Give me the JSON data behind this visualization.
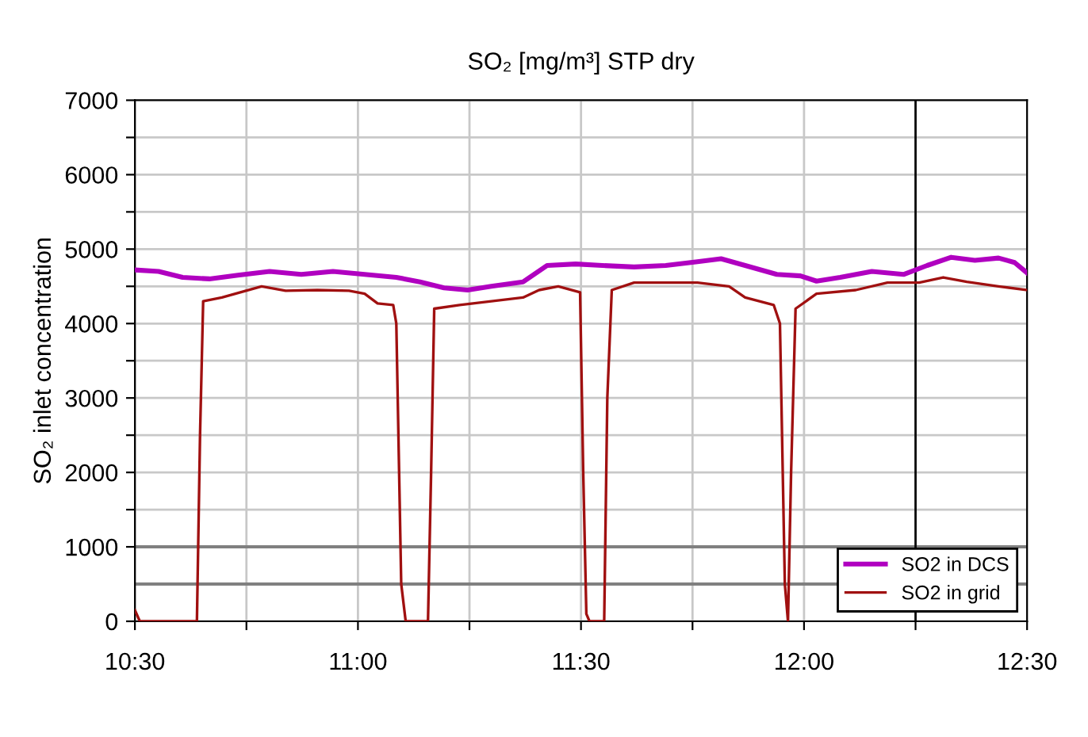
{
  "chart_data": {
    "type": "line",
    "title": "SO₂ [mg/m³] STP dry",
    "ylabel": "SO₂ inlet concentration",
    "xlim": [
      10.5,
      12.5
    ],
    "xticks": [
      {
        "value": 10.5,
        "label": "10:30"
      },
      {
        "value": 10.75,
        "label": null
      },
      {
        "value": 11,
        "label": "11:00"
      },
      {
        "value": 11.25,
        "label": null
      },
      {
        "value": 11.5,
        "label": "11:30"
      },
      {
        "value": 11.75,
        "label": null
      },
      {
        "value": 12,
        "label": "12:00"
      },
      {
        "value": 12.25,
        "label": null
      },
      {
        "value": 12.5,
        "label": "12:30"
      }
    ],
    "ylim": [
      0,
      7000
    ],
    "yticks": [
      0,
      1000,
      {
        "value": 1500,
        "label": null
      },
      2000,
      {
        "value": 2500,
        "label": null
      },
      3000,
      {
        "value": 3500,
        "label": null
      },
      4000,
      {
        "value": 4500,
        "label": null
      },
      5000,
      {
        "value": 5500,
        "label": null
      },
      6000,
      {
        "value": 6500,
        "label": null
      },
      7000
    ],
    "grid": true,
    "legend": "bottom right",
    "marker": "none",
    "line_style": "solid",
    "ref_lines": [
      {
        "axis": "y",
        "value": 500,
        "color": "#808080"
      },
      {
        "axis": "y",
        "value": 1000,
        "color": "#808080"
      },
      {
        "axis": "x",
        "value": 12.25,
        "color": "#000000"
      }
    ],
    "series": [
      {
        "name": "SO2 in DCS",
        "color": "#b000c0",
        "x": [
          10.5,
          10.553,
          10.607,
          10.667,
          10.731,
          10.802,
          10.873,
          10.944,
          11.015,
          11.086,
          11.139,
          11.193,
          11.246,
          11.299,
          11.37,
          11.424,
          11.488,
          11.548,
          11.619,
          11.69,
          11.761,
          11.814,
          11.868,
          11.939,
          11.992,
          12.028,
          12.081,
          12.152,
          12.223,
          12.276,
          12.33,
          12.383,
          12.436,
          12.472,
          12.5
        ],
        "values": [
          4720,
          4700,
          4620,
          4600,
          4650,
          4700,
          4660,
          4700,
          4660,
          4620,
          4560,
          4480,
          4450,
          4500,
          4560,
          4780,
          4800,
          4780,
          4760,
          4780,
          4830,
          4870,
          4780,
          4660,
          4640,
          4570,
          4620,
          4700,
          4660,
          4780,
          4890,
          4850,
          4880,
          4820,
          4680
        ]
      },
      {
        "name": "SO2 in grid",
        "color": "#a01010",
        "x": [
          10.5,
          10.511,
          10.639,
          10.646,
          10.653,
          10.695,
          10.784,
          10.838,
          10.909,
          10.98,
          11.015,
          11.044,
          11.079,
          11.086,
          11.097,
          11.107,
          11.157,
          11.164,
          11.171,
          11.228,
          11.299,
          11.37,
          11.406,
          11.449,
          11.498,
          11.505,
          11.512,
          11.519,
          11.552,
          11.559,
          11.569,
          11.619,
          11.69,
          11.761,
          11.832,
          11.868,
          11.932,
          11.946,
          11.957,
          11.964,
          11.971,
          11.981,
          12.028,
          12.116,
          12.187,
          12.258,
          12.312,
          12.365,
          12.436,
          12.5
        ],
        "values": [
          150,
          0,
          0,
          2500,
          4300,
          4350,
          4500,
          4440,
          4450,
          4440,
          4400,
          4270,
          4250,
          4000,
          500,
          0,
          0,
          2000,
          4200,
          4250,
          4300,
          4350,
          4450,
          4500,
          4420,
          2000,
          100,
          0,
          0,
          3000,
          4450,
          4550,
          4550,
          4550,
          4500,
          4350,
          4250,
          4000,
          500,
          0,
          2000,
          4200,
          4400,
          4450,
          4550,
          4550,
          4620,
          4560,
          4500,
          4450
        ]
      }
    ]
  }
}
